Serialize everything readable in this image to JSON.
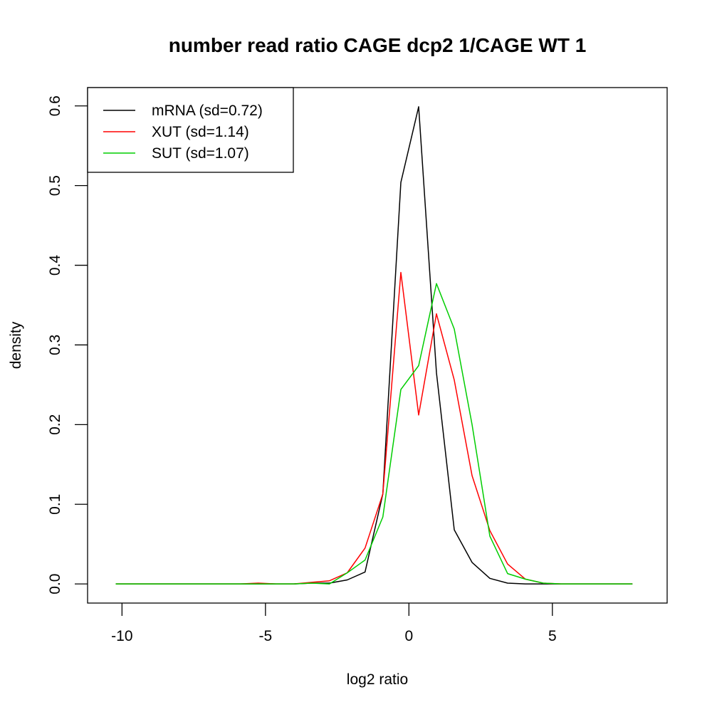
{
  "chart_data": {
    "type": "line",
    "title": "number read ratio CAGE dcp2 1/CAGE WT 1",
    "xlabel": "log2 ratio",
    "ylabel": "density",
    "xlim": [
      -11.2,
      9.0
    ],
    "ylim": [
      -0.024,
      0.623
    ],
    "xticks": [
      -10,
      -5,
      0,
      5
    ],
    "xtick_labels": [
      "-10",
      "-5",
      "0",
      "5"
    ],
    "yticks": [
      0.0,
      0.1,
      0.2,
      0.3,
      0.4,
      0.5,
      0.6
    ],
    "ytick_labels": [
      "0.0",
      "0.1",
      "0.2",
      "0.3",
      "0.4",
      "0.5",
      "0.6"
    ],
    "grid": false,
    "legend_position": "top-left",
    "x": [
      -10.22,
      -9.6,
      -8.98,
      -8.36,
      -7.74,
      -7.12,
      -6.5,
      -5.88,
      -5.25,
      -4.63,
      -4.01,
      -3.39,
      -2.77,
      -2.15,
      -1.53,
      -0.91,
      -0.28,
      0.34,
      0.96,
      1.58,
      2.2,
      2.82,
      3.44,
      4.06,
      4.68,
      5.3,
      5.92,
      6.54,
      7.16,
      7.79
    ],
    "series": [
      {
        "name": "mRNA (sd=0.72)",
        "color": "#000000",
        "values": [
          0,
          0,
          0,
          0,
          0,
          0,
          0,
          0,
          0,
          0,
          0,
          0.001,
          0.001,
          0.005,
          0.015,
          0.113,
          0.504,
          0.599,
          0.265,
          0.068,
          0.027,
          0.007,
          0.001,
          0,
          0,
          0,
          0,
          0,
          0,
          0
        ]
      },
      {
        "name": "XUT (sd=1.14)",
        "color": "#ff0000",
        "values": [
          0,
          0,
          0,
          0,
          0,
          0,
          0,
          0,
          0.001,
          0,
          0,
          0.002,
          0.004,
          0.014,
          0.045,
          0.113,
          0.391,
          0.212,
          0.339,
          0.256,
          0.136,
          0.067,
          0.025,
          0.006,
          0.001,
          0,
          0,
          0,
          0,
          0
        ]
      },
      {
        "name": "SUT (sd=1.07)",
        "color": "#00cd00",
        "values": [
          0,
          0,
          0,
          0,
          0,
          0,
          0,
          0,
          0,
          0,
          0,
          0.001,
          0,
          0.014,
          0.03,
          0.084,
          0.244,
          0.274,
          0.377,
          0.32,
          0.2,
          0.06,
          0.013,
          0.006,
          0.001,
          0,
          0,
          0,
          0,
          0
        ]
      }
    ]
  }
}
